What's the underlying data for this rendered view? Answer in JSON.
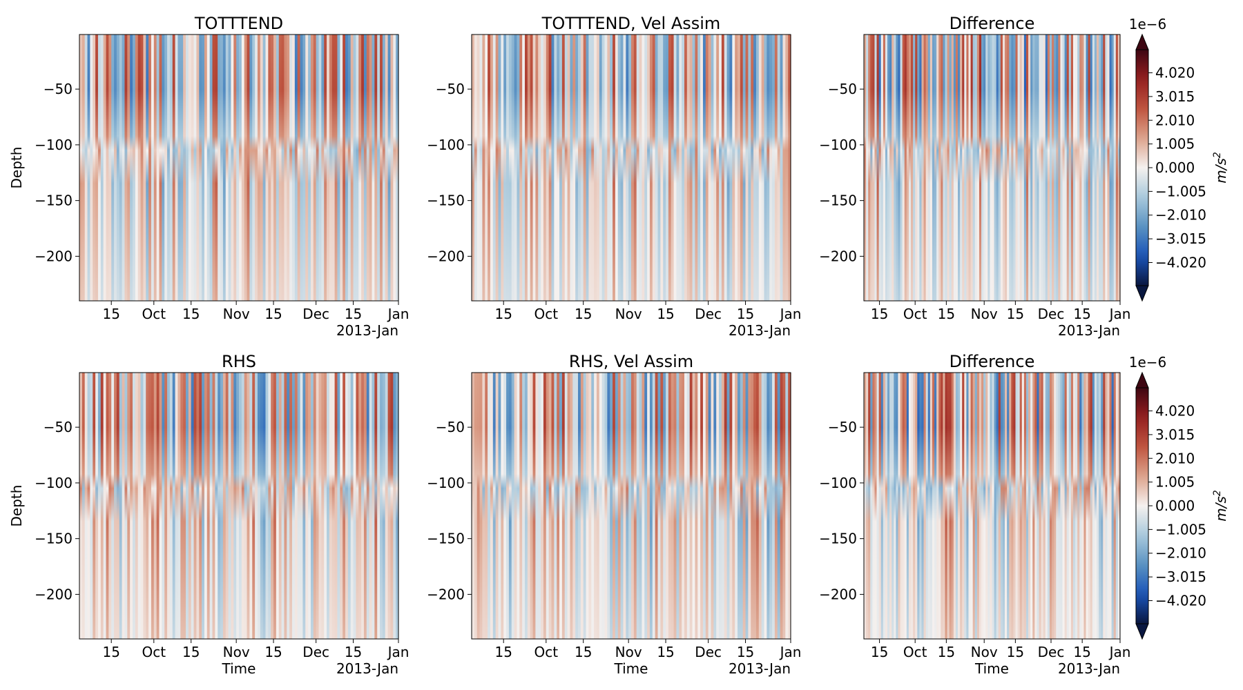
{
  "figure": {
    "colorbar": {
      "ticks": [
        "4.020",
        "3.015",
        "2.010",
        "1.005",
        "0.000",
        "−1.005",
        "−2.010",
        "−3.015",
        "−4.020"
      ],
      "tick_values": [
        4.02,
        3.015,
        2.01,
        1.005,
        0.0,
        -1.005,
        -2.01,
        -3.015,
        -4.02
      ],
      "range": [
        -5.0,
        5.0
      ],
      "extend": "both",
      "exponent": "1e−6",
      "unit": "m/s",
      "unit_sup": "2",
      "colors": [
        "#091740",
        "#1a54b8",
        "#5a92c2",
        "#a9c9dc",
        "#f5f1ef",
        "#dca28b",
        "#bf5540",
        "#951f20",
        "#3e0612"
      ]
    }
  },
  "chart_data": [
    {
      "type": "heatmap",
      "title": "TOTTTEND",
      "xlabel": "",
      "ylabel": "Depth",
      "x_ticks": [
        "15",
        "Oct",
        "15",
        "Nov",
        "15",
        "Dec",
        "15",
        "Jan"
      ],
      "x_tick_dates": [
        "2012-09-15",
        "2012-10-01",
        "2012-10-15",
        "2012-11-01",
        "2012-11-15",
        "2012-12-01",
        "2012-12-15",
        "2013-01-01"
      ],
      "x_offset_label": "2013-Jan",
      "xlim": [
        "2012-09-03",
        "2013-01-01"
      ],
      "y_ticks": [
        "−50",
        "−100",
        "−150",
        "−200"
      ],
      "y_tick_values": [
        -50,
        -100,
        -150,
        -200
      ],
      "ylim": [
        -240,
        -1
      ],
      "clim": [
        -5e-06,
        5e-06
      ]
    },
    {
      "type": "heatmap",
      "title": "TOTTTEND, Vel Assim",
      "xlabel": "",
      "ylabel": "",
      "x_ticks": [
        "15",
        "Oct",
        "15",
        "Nov",
        "15",
        "Dec",
        "15",
        "Jan"
      ],
      "x_tick_dates": [
        "2012-09-15",
        "2012-10-01",
        "2012-10-15",
        "2012-11-01",
        "2012-11-15",
        "2012-12-01",
        "2012-12-15",
        "2013-01-01"
      ],
      "x_offset_label": "2013-Jan",
      "xlim": [
        "2012-09-03",
        "2013-01-01"
      ],
      "y_ticks": [
        "−50",
        "−100",
        "−150",
        "−200"
      ],
      "y_tick_values": [
        -50,
        -100,
        -150,
        -200
      ],
      "ylim": [
        -240,
        -1
      ],
      "clim": [
        -5e-06,
        5e-06
      ]
    },
    {
      "type": "heatmap",
      "title": "Difference",
      "xlabel": "",
      "ylabel": "",
      "x_ticks": [
        "15",
        "Oct",
        "15",
        "Nov",
        "15",
        "Dec",
        "15",
        "Jan"
      ],
      "x_tick_dates": [
        "2012-09-15",
        "2012-10-01",
        "2012-10-15",
        "2012-11-01",
        "2012-11-15",
        "2012-12-01",
        "2012-12-15",
        "2013-01-01"
      ],
      "x_offset_label": "2013-Jan",
      "xlim": [
        "2012-09-08",
        "2013-01-01"
      ],
      "y_ticks": [
        "−50",
        "−100",
        "−150",
        "−200"
      ],
      "y_tick_values": [
        -50,
        -100,
        -150,
        -200
      ],
      "ylim": [
        -240,
        -1
      ],
      "clim": [
        -5e-06,
        5e-06
      ]
    },
    {
      "type": "heatmap",
      "title": "RHS",
      "xlabel": "Time",
      "ylabel": "Depth",
      "x_ticks": [
        "15",
        "Oct",
        "15",
        "Nov",
        "15",
        "Dec",
        "15",
        "Jan"
      ],
      "x_tick_dates": [
        "2012-09-15",
        "2012-10-01",
        "2012-10-15",
        "2012-11-01",
        "2012-11-15",
        "2012-12-01",
        "2012-12-15",
        "2013-01-01"
      ],
      "x_offset_label": "2013-Jan",
      "xlim": [
        "2012-09-03",
        "2013-01-01"
      ],
      "y_ticks": [
        "−50",
        "−100",
        "−150",
        "−200"
      ],
      "y_tick_values": [
        -50,
        -100,
        -150,
        -200
      ],
      "ylim": [
        -240,
        -1
      ],
      "clim": [
        -5e-06,
        5e-06
      ]
    },
    {
      "type": "heatmap",
      "title": "RHS, Vel Assim",
      "xlabel": "Time",
      "ylabel": "",
      "x_ticks": [
        "15",
        "Oct",
        "15",
        "Nov",
        "15",
        "Dec",
        "15",
        "Jan"
      ],
      "x_tick_dates": [
        "2012-09-15",
        "2012-10-01",
        "2012-10-15",
        "2012-11-01",
        "2012-11-15",
        "2012-12-01",
        "2012-12-15",
        "2013-01-01"
      ],
      "x_offset_label": "2013-Jan",
      "xlim": [
        "2012-09-03",
        "2013-01-01"
      ],
      "y_ticks": [
        "−50",
        "−100",
        "−150",
        "−200"
      ],
      "y_tick_values": [
        -50,
        -100,
        -150,
        -200
      ],
      "ylim": [
        -240,
        -1
      ],
      "clim": [
        -5e-06,
        5e-06
      ]
    },
    {
      "type": "heatmap",
      "title": "Difference",
      "xlabel": "Time",
      "ylabel": "",
      "x_ticks": [
        "15",
        "Oct",
        "15",
        "Nov",
        "15",
        "Dec",
        "15",
        "Jan"
      ],
      "x_tick_dates": [
        "2012-09-15",
        "2012-10-01",
        "2012-10-15",
        "2012-11-01",
        "2012-11-15",
        "2012-12-01",
        "2012-12-15",
        "2013-01-01"
      ],
      "x_offset_label": "2013-Jan",
      "xlim": [
        "2012-09-08",
        "2013-01-01"
      ],
      "y_ticks": [
        "−50",
        "−100",
        "−150",
        "−200"
      ],
      "y_tick_values": [
        -50,
        -100,
        -150,
        -200
      ],
      "ylim": [
        -240,
        -1
      ],
      "clim": [
        -5e-06,
        5e-06
      ]
    }
  ]
}
